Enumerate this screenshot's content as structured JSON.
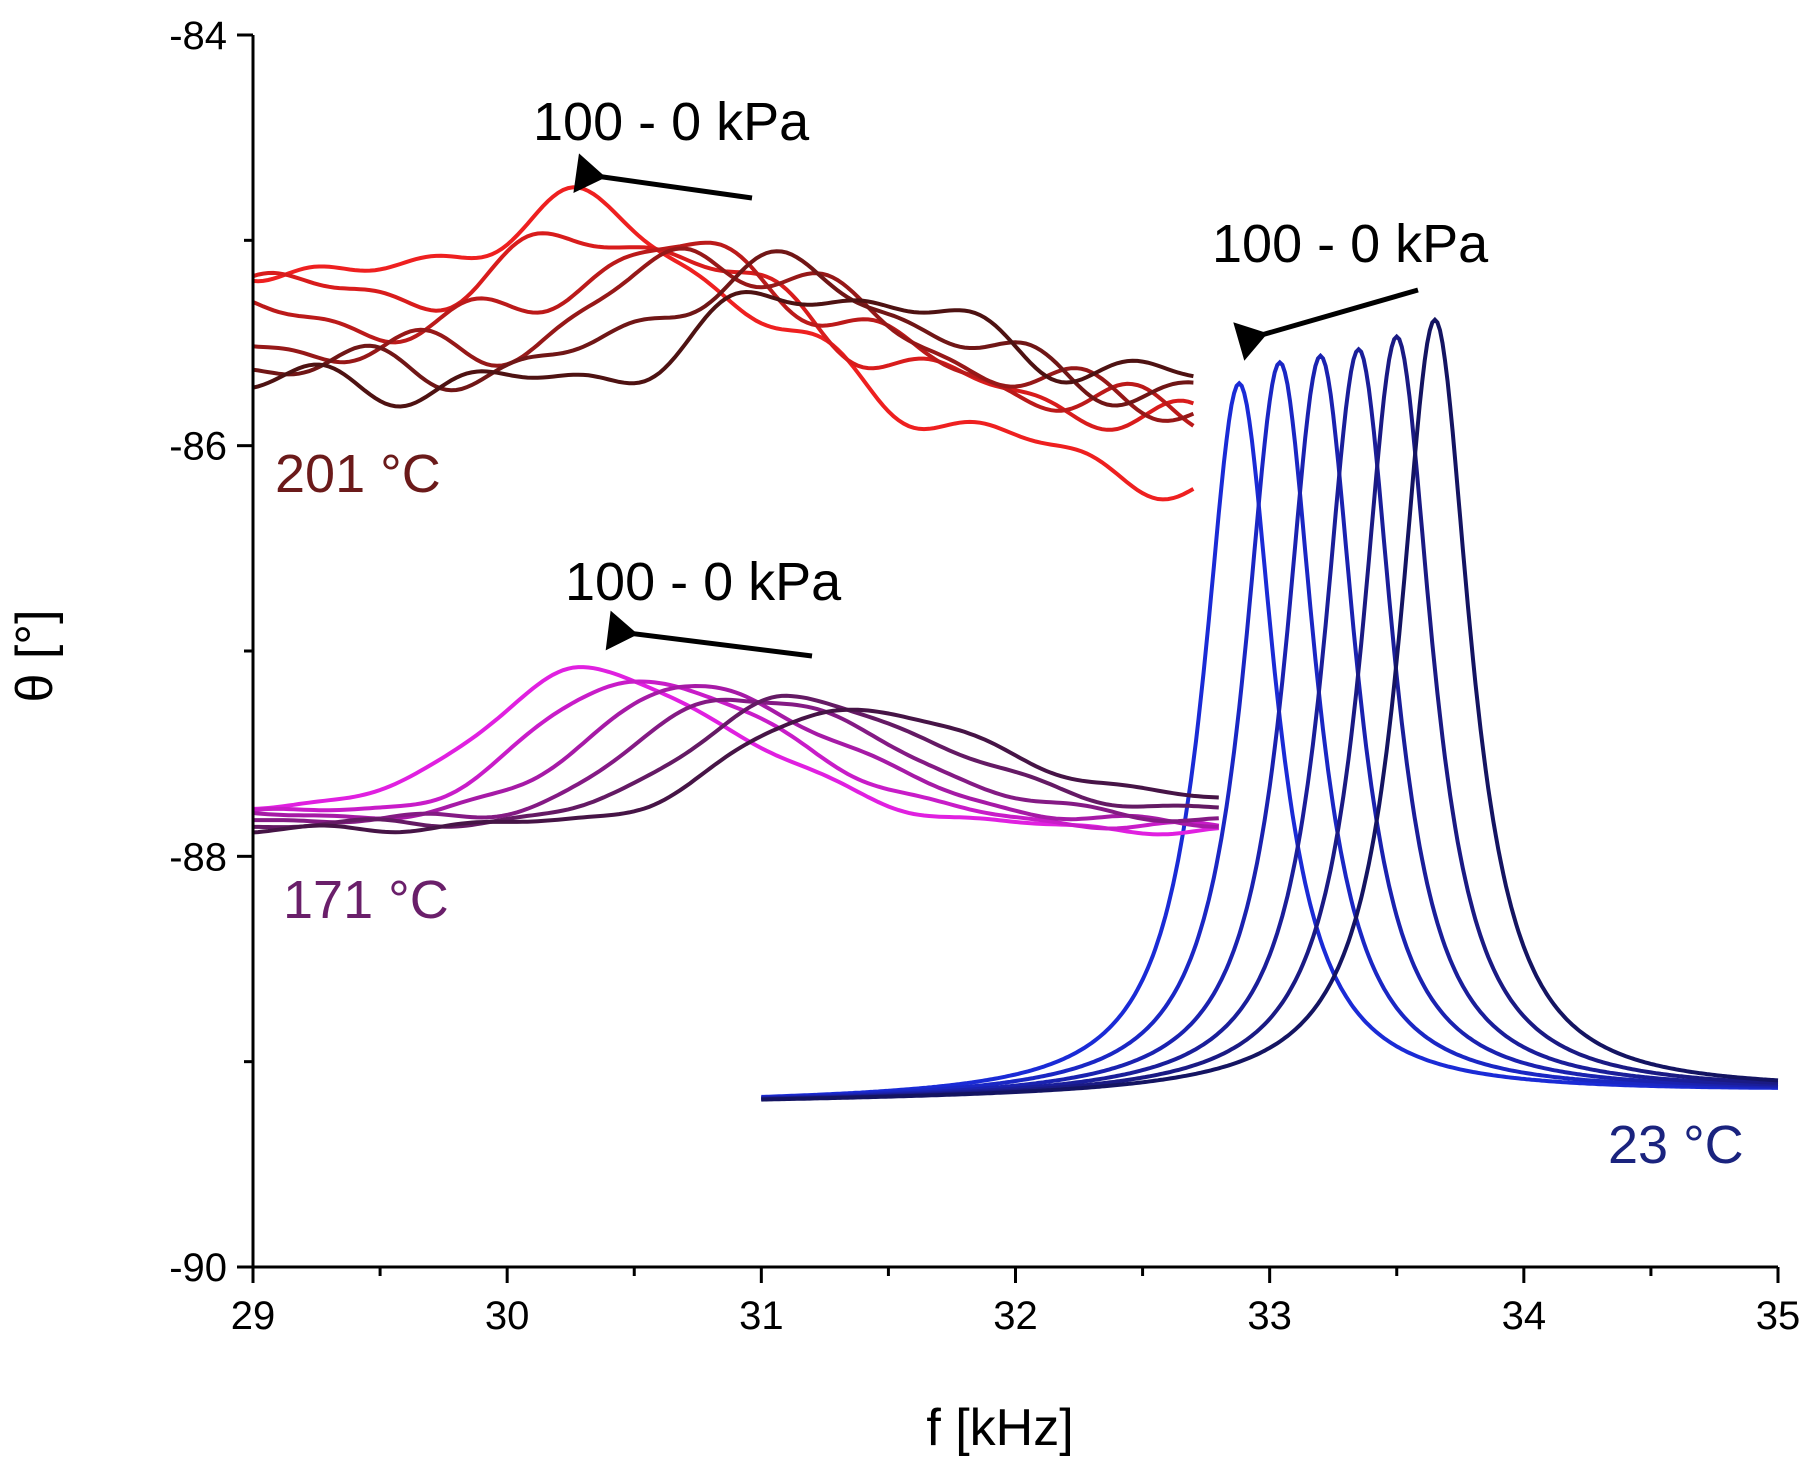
{
  "chart_data": {
    "type": "line",
    "xlabel": "f [kHz]",
    "ylabel": "θ [°]",
    "xlim": [
      29,
      35
    ],
    "ylim": [
      -90,
      -84
    ],
    "xticks": [
      29,
      30,
      31,
      32,
      33,
      34,
      35
    ],
    "yticks": [
      -90,
      -88,
      -86,
      -84
    ],
    "x_tick_labels": [
      "29",
      "30",
      "31",
      "32",
      "33",
      "34",
      "35"
    ],
    "y_tick_labels": [
      "-90",
      "-88",
      "-86",
      "-84"
    ],
    "annotations": [
      {
        "text": "100 - 0 kPa",
        "group": "201"
      },
      {
        "text": "100 - 0 kPa",
        "group": "23"
      },
      {
        "text": "100 - 0 kPa",
        "group": "171"
      }
    ],
    "temperature_labels": [
      {
        "text": "201 °C",
        "color": "#6b1a1a"
      },
      {
        "text": "171 °C",
        "color": "#6a1f6a"
      },
      {
        "text": "23 °C",
        "color": "#1a237e"
      }
    ],
    "series_groups": {
      "t23": {
        "x_range": [
          31.0,
          35.0
        ],
        "baseline": -89.2,
        "right_level": -89.15,
        "curves": [
          {
            "name": "23 °C curve 1",
            "peak_f": 32.88,
            "peak_theta": -85.72,
            "width": 0.17,
            "color": "#1a2bd6"
          },
          {
            "name": "23 °C curve 2",
            "peak_f": 33.04,
            "peak_theta": -85.62,
            "width": 0.17,
            "color": "#1a27c4"
          },
          {
            "name": "23 °C curve 3",
            "peak_f": 33.2,
            "peak_theta": -85.59,
            "width": 0.17,
            "color": "#1a22b0"
          },
          {
            "name": "23 °C curve 4",
            "peak_f": 33.35,
            "peak_theta": -85.56,
            "width": 0.17,
            "color": "#1a1e9a"
          },
          {
            "name": "23 °C curve 5",
            "peak_f": 33.5,
            "peak_theta": -85.5,
            "width": 0.17,
            "color": "#1a1a84"
          },
          {
            "name": "23 °C curve 6",
            "peak_f": 33.65,
            "peak_theta": -85.42,
            "width": 0.17,
            "color": "#141462"
          }
        ]
      },
      "t171": {
        "x_range": [
          29.0,
          32.8
        ],
        "curves": [
          {
            "name": "171 °C curve 1",
            "start": -87.75,
            "peak_f": 30.3,
            "peak_theta": -87.1,
            "end": -87.88,
            "color": "#e020e0"
          },
          {
            "name": "171 °C curve 2",
            "start": -87.78,
            "peak_f": 30.5,
            "peak_theta": -87.14,
            "end": -87.86,
            "color": "#c81cc8"
          },
          {
            "name": "171 °C curve 3",
            "start": -87.8,
            "peak_f": 30.7,
            "peak_theta": -87.18,
            "end": -87.84,
            "color": "#a61aa6"
          },
          {
            "name": "171 °C curve 4",
            "start": -87.82,
            "peak_f": 30.9,
            "peak_theta": -87.22,
            "end": -87.82,
            "color": "#841a84"
          },
          {
            "name": "171 °C curve 5",
            "start": -87.85,
            "peak_f": 31.1,
            "peak_theta": -87.24,
            "end": -87.78,
            "color": "#641a64"
          },
          {
            "name": "171 °C curve 6",
            "start": -87.88,
            "peak_f": 31.3,
            "peak_theta": -87.28,
            "end": -87.74,
            "color": "#461446"
          }
        ]
      },
      "t201": {
        "x_range": [
          29.0,
          32.7
        ],
        "curves": [
          {
            "name": "201 °C curve 1",
            "start": -85.1,
            "peak_f": 30.3,
            "peak_theta": -84.85,
            "end": -86.2,
            "color": "#ee2020"
          },
          {
            "name": "201 °C curve 2",
            "start": -85.2,
            "peak_f": 30.45,
            "peak_theta": -84.98,
            "end": -85.9,
            "color": "#d81c1c"
          },
          {
            "name": "201 °C curve 3",
            "start": -85.35,
            "peak_f": 30.65,
            "peak_theta": -85.05,
            "end": -85.85,
            "color": "#bb1a1a"
          },
          {
            "name": "201 °C curve 4",
            "start": -85.5,
            "peak_f": 30.8,
            "peak_theta": -85.08,
            "end": -85.8,
            "color": "#961818"
          },
          {
            "name": "201 °C curve 5",
            "start": -85.6,
            "peak_f": 31.0,
            "peak_theta": -85.15,
            "end": -85.75,
            "color": "#701616"
          },
          {
            "name": "201 °C curve 6",
            "start": -85.7,
            "peak_f": 31.2,
            "peak_theta": -85.25,
            "end": -85.7,
            "color": "#4e1212"
          }
        ]
      }
    }
  }
}
